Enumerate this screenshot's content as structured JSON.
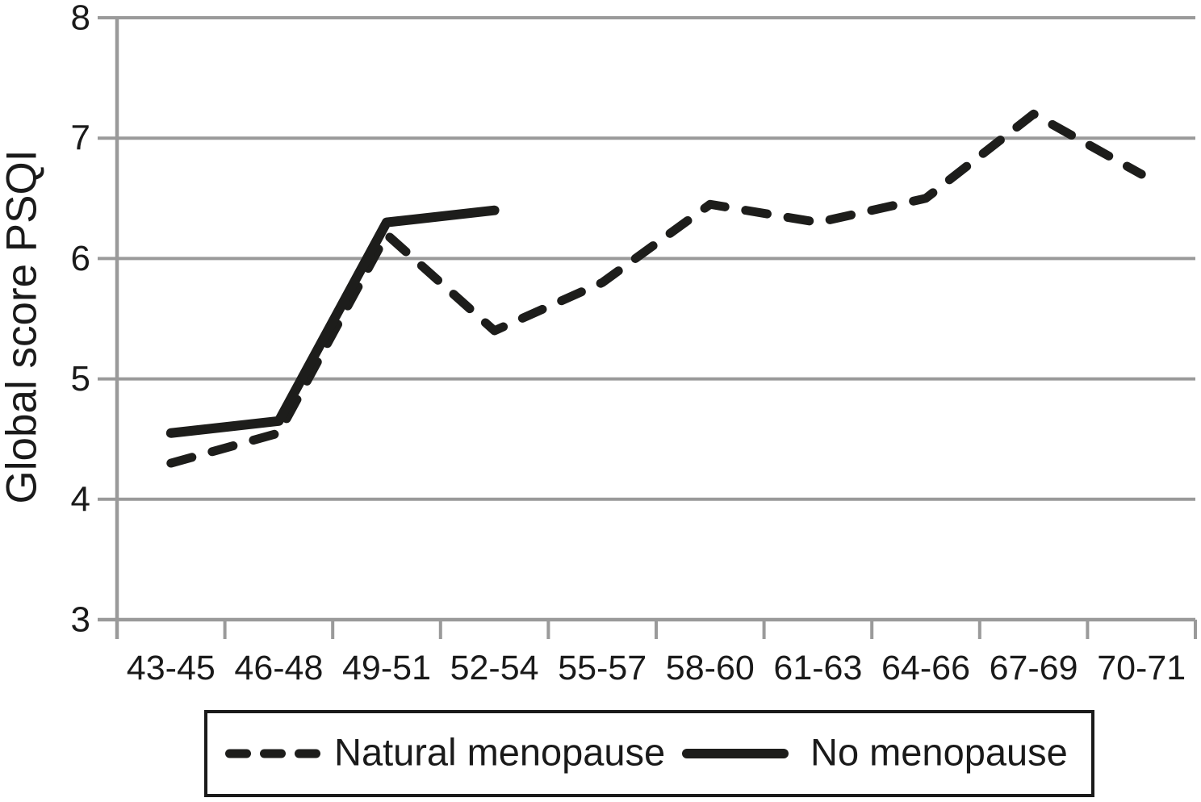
{
  "chart_data": {
    "type": "line",
    "title": "",
    "xlabel": "",
    "ylabel": "Global score PSQI",
    "categories": [
      "43-45",
      "46-48",
      "49-51",
      "52-54",
      "55-57",
      "58-60",
      "61-63",
      "64-66",
      "67-69",
      "70-71"
    ],
    "series": [
      {
        "name": "Natural menopause",
        "line_style": "dashed",
        "color": "#1d1d1b",
        "values": [
          4.3,
          4.55,
          6.2,
          5.4,
          5.8,
          6.45,
          6.3,
          6.5,
          7.2,
          6.7
        ]
      },
      {
        "name": "No menopause",
        "line_style": "solid",
        "color": "#1d1d1b",
        "values": [
          4.55,
          4.65,
          6.3,
          6.4,
          null,
          null,
          null,
          null,
          null,
          null
        ]
      }
    ],
    "ylim": [
      3,
      8
    ],
    "yticks": [
      3,
      4,
      5,
      6,
      7,
      8
    ],
    "grid": true,
    "grid_color": "#9a9a9a",
    "axis_color": "#9a9a9a",
    "text_color": "#1a1a1a",
    "legend_position": "bottom"
  }
}
